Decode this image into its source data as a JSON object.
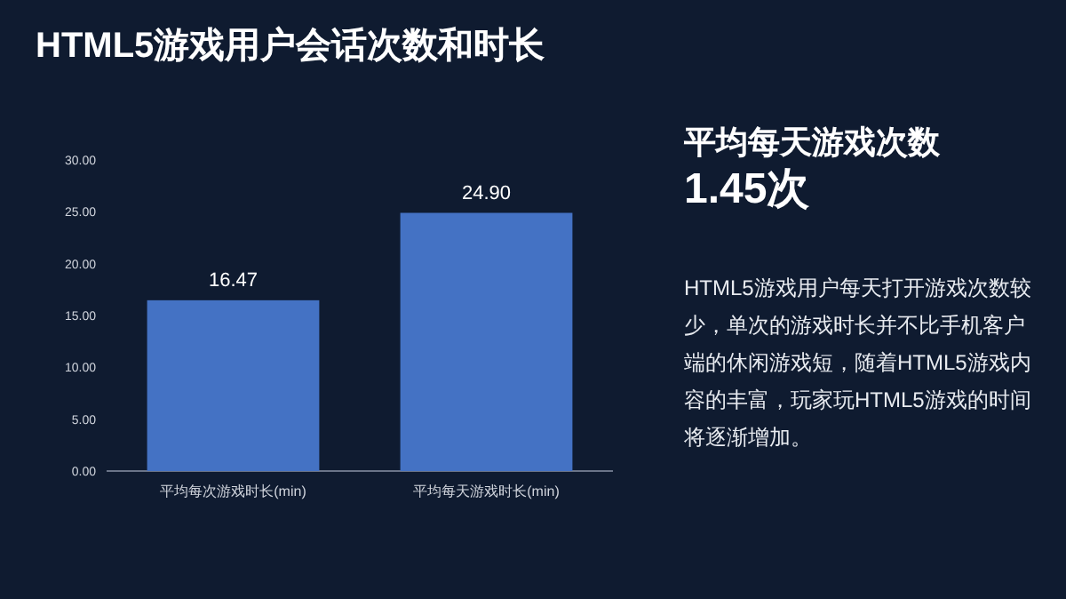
{
  "chart_data": [
    {
      "type": "bar",
      "title": "HTML5游戏用户会话次数和时长",
      "categories": [
        "平均每次游戏时长(min)",
        "平均每天游戏时长(min)"
      ],
      "values": [
        16.47,
        24.9
      ],
      "color": "#4472c4",
      "data_labels": true,
      "value_labels": [
        "16.47",
        "24.90"
      ],
      "ylim": [
        0,
        30
      ],
      "yticks": [
        {
          "value": 0,
          "label": "0.00"
        },
        {
          "value": 5,
          "label": "5.00"
        },
        {
          "value": 10,
          "label": "10.00"
        },
        {
          "value": 15,
          "label": "15.00"
        },
        {
          "value": 20,
          "label": "20.00"
        },
        {
          "value": 25,
          "label": "25.00"
        },
        {
          "value": 30,
          "label": "30.00"
        }
      ]
    },
    {
      "type": "other",
      "title": "平均每天游戏次数",
      "subtitle": "1.45次",
      "annotations": [
        "HTML5游戏用户每天打开游戏次数较少，单次的游戏时长并不比手机客户端的休闲游戏短，随着HTML5游戏内容的丰富，玩家玩HTML5游戏的时间将逐渐增加。"
      ]
    }
  ]
}
